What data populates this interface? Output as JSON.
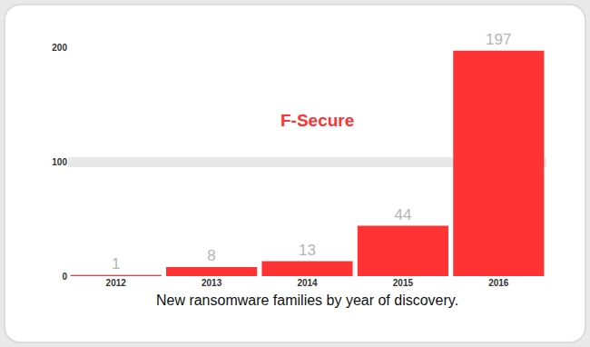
{
  "chart_data": {
    "type": "bar",
    "xlabel": "New ransomware families by year of discovery.",
    "annotations": [
      "F-Secure"
    ],
    "categories": [
      "2012",
      "2013",
      "2014",
      "2015",
      "2016"
    ],
    "values": [
      1,
      8,
      13,
      44,
      197
    ],
    "color": "#ff3333",
    "ylim": [
      0,
      200
    ],
    "yticks": [
      0,
      100,
      200
    ],
    "grid": true,
    "data_labels": true
  }
}
